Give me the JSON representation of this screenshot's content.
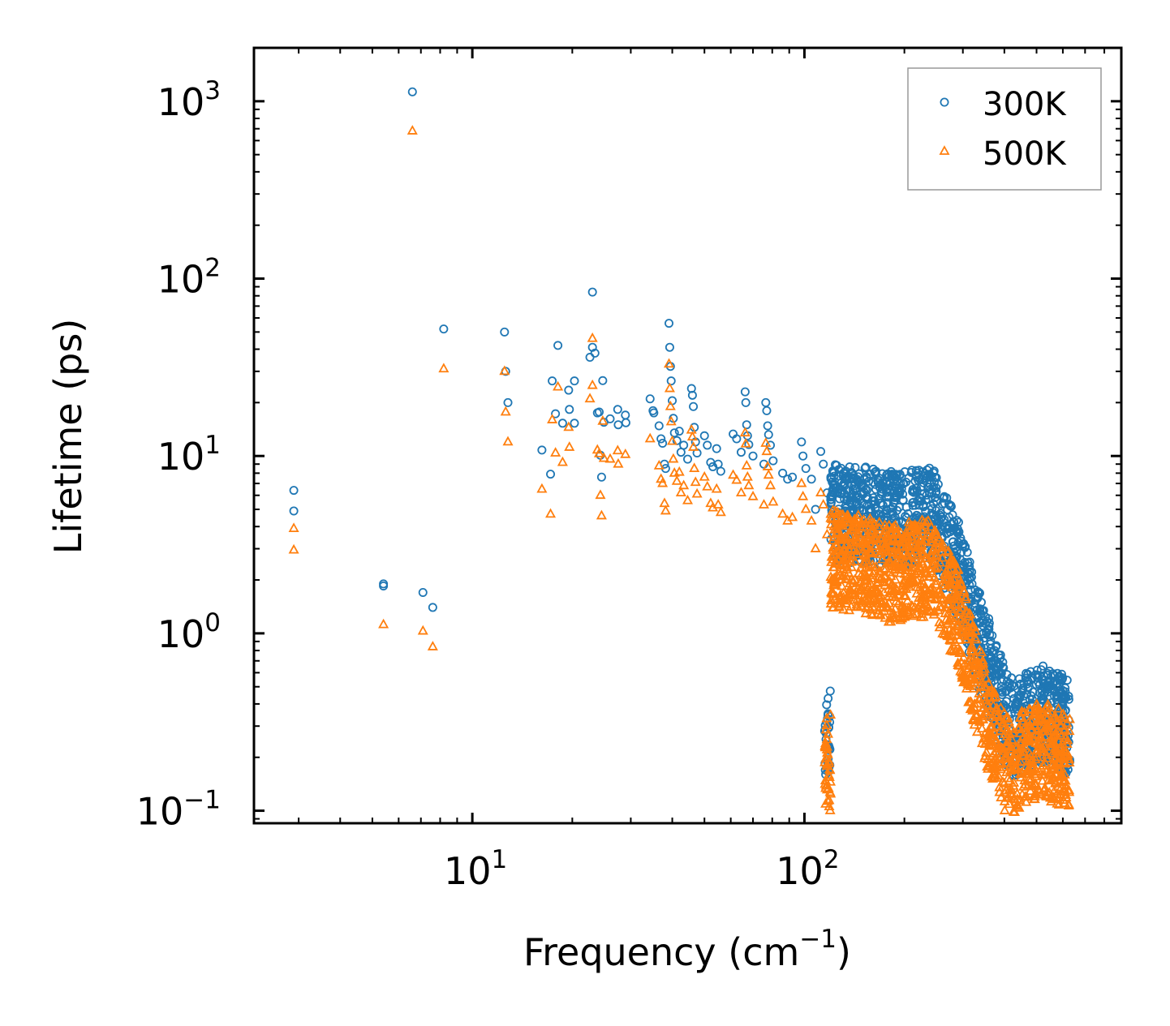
{
  "chart_data": {
    "type": "scatter",
    "xscale": "log",
    "yscale": "log",
    "xlabel": {
      "base": "Frequency (cm",
      "exp": "−1",
      "tail": ")"
    },
    "ylabel": "Lifetime (ps)",
    "xlim": [
      2.2,
      900
    ],
    "ylim": [
      0.085,
      2000
    ],
    "xticks": [
      {
        "value": 10,
        "base": "10",
        "exp": "1"
      },
      {
        "value": 100,
        "base": "10",
        "exp": "2"
      }
    ],
    "yticks": [
      {
        "value": 0.1,
        "base": "10",
        "exp": "−1"
      },
      {
        "value": 1,
        "base": "10",
        "exp": "0"
      },
      {
        "value": 10,
        "base": "10",
        "exp": "1"
      },
      {
        "value": 100,
        "base": "10",
        "exp": "2"
      },
      {
        "value": 1000,
        "base": "10",
        "exp": "3"
      }
    ],
    "legend_position": "top-right",
    "series": [
      {
        "name": "300K",
        "marker": "circle",
        "color": "#1f77b4",
        "points": [
          [
            2.9,
            6.4
          ],
          [
            2.9,
            4.9
          ],
          [
            5.4,
            1.9
          ],
          [
            5.4,
            1.85
          ],
          [
            6.6,
            1130
          ],
          [
            7.1,
            1.7
          ],
          [
            7.6,
            1.4
          ],
          [
            8.2,
            52
          ],
          [
            12.5,
            50
          ],
          [
            12.6,
            30
          ],
          [
            12.8,
            20
          ],
          [
            16.2,
            10.8
          ],
          [
            17.2,
            7.9
          ],
          [
            17.4,
            26.5
          ],
          [
            17.8,
            17.3
          ],
          [
            18.1,
            42
          ],
          [
            18.7,
            15.3
          ],
          [
            19.5,
            23.5
          ],
          [
            19.6,
            18.3
          ],
          [
            20.3,
            26.5
          ],
          [
            20.3,
            15.3
          ],
          [
            22.6,
            36
          ],
          [
            23.0,
            84
          ],
          [
            23.0,
            41
          ],
          [
            23.4,
            38
          ],
          [
            23.8,
            17.5
          ],
          [
            24.1,
            17.7
          ],
          [
            24.3,
            10.1
          ],
          [
            24.5,
            7.6
          ],
          [
            24.7,
            26.6
          ],
          [
            24.9,
            15.5
          ],
          [
            26.0,
            16.2
          ],
          [
            27.4,
            18.3
          ],
          [
            27.5,
            15.0
          ],
          [
            28.9,
            17.0
          ],
          [
            29.0,
            15.4
          ],
          [
            34.3,
            21.0
          ],
          [
            35.0,
            18.0
          ],
          [
            35.2,
            17.5
          ],
          [
            36.5,
            14.8
          ],
          [
            37.0,
            12.5
          ],
          [
            37.4,
            11.8
          ],
          [
            37.9,
            9.0
          ],
          [
            38.2,
            8.5
          ],
          [
            39.1,
            56
          ],
          [
            39.3,
            41
          ],
          [
            39.5,
            32
          ],
          [
            39.7,
            26.5
          ],
          [
            40.0,
            20.5
          ],
          [
            40.3,
            16.3
          ],
          [
            40.6,
            13.5
          ],
          [
            41.3,
            12.2
          ],
          [
            42.0,
            13.8
          ],
          [
            42.5,
            10.5
          ],
          [
            43.3,
            11.5
          ],
          [
            44.5,
            9.6
          ],
          [
            45.7,
            24.0
          ],
          [
            46.0,
            22.0
          ],
          [
            46.3,
            19.0
          ],
          [
            46.6,
            14.5
          ],
          [
            47.0,
            12.0
          ],
          [
            47.5,
            10.4
          ],
          [
            50.0,
            13.0
          ],
          [
            51.0,
            11.5
          ],
          [
            52.2,
            9.2
          ],
          [
            53.0,
            8.7
          ],
          [
            54.4,
            11.0
          ],
          [
            55.0,
            9.0
          ],
          [
            56.0,
            8.2
          ],
          [
            61.0,
            13.3
          ],
          [
            62.5,
            12.5
          ],
          [
            64.5,
            10.5
          ],
          [
            66.3,
            23.0
          ],
          [
            66.6,
            20.0
          ],
          [
            67.0,
            15.0
          ],
          [
            67.4,
            13.0
          ],
          [
            68.0,
            11.6
          ],
          [
            70.0,
            10.0
          ],
          [
            75.5,
            9.0
          ],
          [
            76.5,
            20.0
          ],
          [
            77.0,
            18.0
          ],
          [
            77.5,
            14.8
          ],
          [
            78.0,
            13.2
          ],
          [
            79.0,
            11.5
          ],
          [
            80.5,
            9.4
          ],
          [
            86.0,
            8.0
          ],
          [
            89.0,
            7.4
          ],
          [
            92.0,
            7.6
          ],
          [
            98.0,
            12.0
          ],
          [
            99.0,
            10.0
          ],
          [
            101.0,
            8.5
          ],
          [
            105.0,
            7.4
          ],
          [
            108.0,
            5.0
          ],
          [
            112.0,
            10.6
          ],
          [
            114.0,
            9.0
          ],
          [
            117.0,
            6.2
          ]
        ]
      },
      {
        "name": "500K",
        "marker": "triangle",
        "color": "#ff7f0e",
        "points": [
          [
            2.9,
            3.9
          ],
          [
            2.9,
            2.95
          ],
          [
            5.4,
            1.12
          ],
          [
            6.6,
            680
          ],
          [
            7.1,
            1.03
          ],
          [
            7.6,
            0.84
          ],
          [
            8.2,
            31
          ],
          [
            12.5,
            30
          ],
          [
            12.6,
            17.7
          ],
          [
            12.8,
            12
          ],
          [
            16.2,
            6.5
          ],
          [
            17.2,
            4.7
          ],
          [
            17.4,
            16
          ],
          [
            17.8,
            10.4
          ],
          [
            18.1,
            24.5
          ],
          [
            18.7,
            9.2
          ],
          [
            19.5,
            14.5
          ],
          [
            19.6,
            11.2
          ],
          [
            22.6,
            21
          ],
          [
            23.0,
            46
          ],
          [
            23.0,
            25
          ],
          [
            23.8,
            10.8
          ],
          [
            24.1,
            10.3
          ],
          [
            24.3,
            6.0
          ],
          [
            24.5,
            4.6
          ],
          [
            24.7,
            15.7
          ],
          [
            24.9,
            9.7
          ],
          [
            26.0,
            9.6
          ],
          [
            27.4,
            10.7
          ],
          [
            27.5,
            9.0
          ],
          [
            28.9,
            10.2
          ],
          [
            34.3,
            12.5
          ],
          [
            36.5,
            8.8
          ],
          [
            37.0,
            7.4
          ],
          [
            37.4,
            7.0
          ],
          [
            37.9,
            5.4
          ],
          [
            38.2,
            4.9
          ],
          [
            39.1,
            33
          ],
          [
            39.3,
            24
          ],
          [
            39.5,
            19
          ],
          [
            39.7,
            15.6
          ],
          [
            40.0,
            12.1
          ],
          [
            40.3,
            9.6
          ],
          [
            40.6,
            8.0
          ],
          [
            41.3,
            7.2
          ],
          [
            42.0,
            8.1
          ],
          [
            42.5,
            6.2
          ],
          [
            43.3,
            6.8
          ],
          [
            44.5,
            5.6
          ],
          [
            45.7,
            14.0
          ],
          [
            46.0,
            12.8
          ],
          [
            46.3,
            11.2
          ],
          [
            46.6,
            8.5
          ],
          [
            47.0,
            7.1
          ],
          [
            47.5,
            6.1
          ],
          [
            50.0,
            7.6
          ],
          [
            51.0,
            6.7
          ],
          [
            52.2,
            5.4
          ],
          [
            53.0,
            5.1
          ],
          [
            54.4,
            6.5
          ],
          [
            55.0,
            5.3
          ],
          [
            56.0,
            4.8
          ],
          [
            61.0,
            7.8
          ],
          [
            62.5,
            7.3
          ],
          [
            64.5,
            6.2
          ],
          [
            66.3,
            13.5
          ],
          [
            66.6,
            11.7
          ],
          [
            67.0,
            8.8
          ],
          [
            67.4,
            7.6
          ],
          [
            68.0,
            6.8
          ],
          [
            70.0,
            5.9
          ],
          [
            75.5,
            5.3
          ],
          [
            76.5,
            11.8
          ],
          [
            77.0,
            10.6
          ],
          [
            77.5,
            8.7
          ],
          [
            78.0,
            7.8
          ],
          [
            79.0,
            6.8
          ],
          [
            80.5,
            5.5
          ],
          [
            86.0,
            4.7
          ],
          [
            89.0,
            4.3
          ],
          [
            92.0,
            4.5
          ],
          [
            98.0,
            7.0
          ],
          [
            99.0,
            5.9
          ],
          [
            101.0,
            5.0
          ],
          [
            105.0,
            4.3
          ],
          [
            108.0,
            3.0
          ],
          [
            112.0,
            6.2
          ],
          [
            114.0,
            5.3
          ],
          [
            117.0,
            3.6
          ]
        ]
      }
    ],
    "dense_band": {
      "x_range": [
        115,
        630
      ],
      "description_300K": "dense cluster falling from about 7 ps near 120-250 cm^-1 to about 0.3-0.6 ps at 400-630 cm^-1",
      "profile_300K": [
        [
          120,
          6.2
        ],
        [
          150,
          6.0
        ],
        [
          180,
          5.6
        ],
        [
          210,
          5.8
        ],
        [
          240,
          6.2
        ],
        [
          265,
          4.2
        ],
        [
          290,
          3.0
        ],
        [
          310,
          2.0
        ],
        [
          330,
          1.3
        ],
        [
          350,
          0.95
        ],
        [
          375,
          0.65
        ],
        [
          400,
          0.45
        ],
        [
          430,
          0.36
        ],
        [
          470,
          0.42
        ],
        [
          520,
          0.45
        ],
        [
          570,
          0.43
        ],
        [
          630,
          0.38
        ]
      ],
      "profile_500K": [
        [
          120,
          2.8
        ],
        [
          150,
          2.6
        ],
        [
          180,
          2.3
        ],
        [
          210,
          2.4
        ],
        [
          240,
          2.5
        ],
        [
          265,
          1.8
        ],
        [
          290,
          1.3
        ],
        [
          310,
          0.85
        ],
        [
          330,
          0.55
        ],
        [
          350,
          0.38
        ],
        [
          375,
          0.26
        ],
        [
          400,
          0.2
        ],
        [
          430,
          0.19
        ],
        [
          470,
          0.22
        ],
        [
          520,
          0.23
        ],
        [
          570,
          0.22
        ],
        [
          630,
          0.2
        ]
      ]
    }
  }
}
